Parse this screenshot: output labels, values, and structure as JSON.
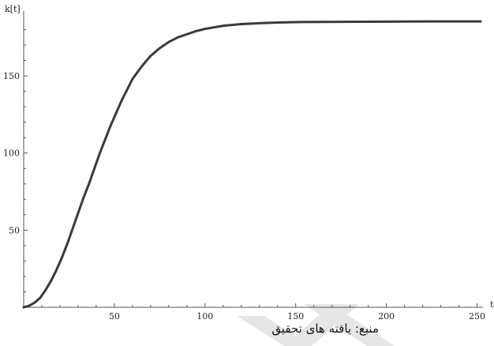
{
  "source_note": "منبع: یافته های تحقیق",
  "watermark_color": "#e6e6e6",
  "chart_data": {
    "type": "line",
    "title": "",
    "xlabel": "t",
    "ylabel": "k[t]",
    "xlim": [
      0,
      255
    ],
    "ylim": [
      0,
      190
    ],
    "x_ticks": [
      50,
      100,
      150,
      200,
      250
    ],
    "y_ticks": [
      50,
      100,
      150
    ],
    "grid": false,
    "series": [
      {
        "color": "#3a3a3a",
        "points": [
          [
            0,
            0
          ],
          [
            3,
            1
          ],
          [
            6,
            3
          ],
          [
            9,
            6
          ],
          [
            12,
            11
          ],
          [
            15,
            17
          ],
          [
            18,
            24
          ],
          [
            21,
            32
          ],
          [
            24,
            41
          ],
          [
            27,
            51
          ],
          [
            30,
            61
          ],
          [
            33,
            71
          ],
          [
            36,
            80
          ],
          [
            39,
            90
          ],
          [
            42,
            100
          ],
          [
            45,
            109
          ],
          [
            48,
            118
          ],
          [
            51,
            126
          ],
          [
            54,
            134
          ],
          [
            57,
            141
          ],
          [
            60,
            148
          ],
          [
            65,
            156
          ],
          [
            70,
            163
          ],
          [
            75,
            168
          ],
          [
            80,
            172
          ],
          [
            85,
            175
          ],
          [
            90,
            177
          ],
          [
            95,
            179
          ],
          [
            100,
            180.5
          ],
          [
            110,
            182.5
          ],
          [
            120,
            183.6
          ],
          [
            130,
            184.2
          ],
          [
            140,
            184.6
          ],
          [
            150,
            184.9
          ],
          [
            175,
            185.1
          ],
          [
            200,
            185.2
          ],
          [
            225,
            185.3
          ],
          [
            252,
            185.3
          ]
        ]
      }
    ]
  }
}
